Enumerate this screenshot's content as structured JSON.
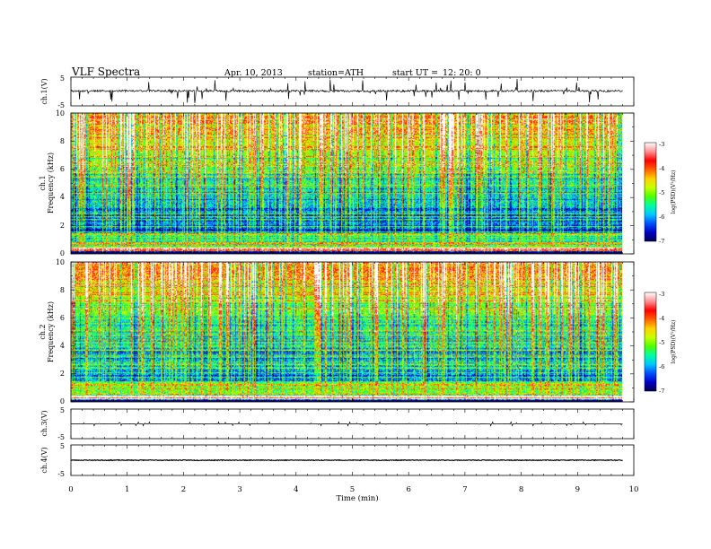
{
  "header": {
    "title": "VLF  Spectra",
    "date": "Apr. 10, 2013",
    "station": "station=ATH",
    "start_label": "start  UT  =",
    "start_time": "12: 20: 0"
  },
  "chart_data": [
    {
      "type": "line",
      "name": "ch1-waveform",
      "ylabel": "ch.1(V)",
      "ylim": [
        -5,
        5
      ],
      "yticks": [
        "5",
        "-5"
      ],
      "baseline": 0.2,
      "noise": 0.35,
      "spikes": 0.9
    },
    {
      "type": "heatmap",
      "name": "ch1-spectrogram",
      "ylabel_top": "ch.1",
      "ylabel": "Frequency  (kHz)",
      "ylim": [
        0,
        10
      ],
      "yticks": [
        "0",
        "2",
        "4",
        "6",
        "8",
        "10"
      ],
      "xlim": [
        0,
        9.8
      ],
      "colorbar": {
        "label": "log(PSD)(V²/Hz)",
        "ticks": [
          "-3",
          "-4",
          "-5",
          "-6",
          "-7"
        ],
        "range": [
          -7,
          -3
        ]
      }
    },
    {
      "type": "heatmap",
      "name": "ch2-spectrogram",
      "ylabel_top": "ch.2",
      "ylabel": "Frequency  (kHz)",
      "ylim": [
        0,
        10
      ],
      "yticks": [
        "0",
        "2",
        "4",
        "6",
        "8",
        "10"
      ],
      "xlim": [
        0,
        9.8
      ],
      "colorbar": {
        "label": "log(PSD)(V²/Hz)",
        "ticks": [
          "-3",
          "-4",
          "-5",
          "-6",
          "-7"
        ],
        "range": [
          -7,
          -3
        ]
      }
    },
    {
      "type": "line",
      "name": "ch3-waveform",
      "ylabel": "ch.3(V)",
      "ylim": [
        -5,
        5
      ],
      "yticks": [
        "5",
        "-5"
      ],
      "baseline": 0.0,
      "noise": 0.03,
      "spikes": 0.15
    },
    {
      "type": "line",
      "name": "ch4-waveform",
      "ylabel": "ch.4(V)",
      "ylim": [
        -5,
        5
      ],
      "yticks": [
        "5",
        "-5"
      ],
      "baseline": 0.0,
      "noise": 0.12,
      "spikes": 0.0
    }
  ],
  "xaxis": {
    "label": "Time  (min)",
    "range": [
      0,
      10
    ],
    "ticks": [
      "0",
      "1",
      "2",
      "3",
      "4",
      "5",
      "6",
      "7",
      "8",
      "9",
      "10"
    ],
    "data_end": 9.8
  },
  "colors": {
    "scale": [
      "#000050",
      "#0000c8",
      "#0050ff",
      "#00c8ff",
      "#00ffa0",
      "#50ff00",
      "#c8ff00",
      "#ffd000",
      "#ff6000",
      "#ff0000",
      "#ff9090",
      "#ffffff"
    ]
  }
}
